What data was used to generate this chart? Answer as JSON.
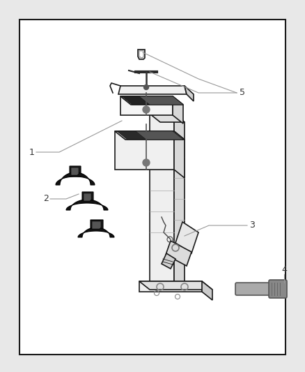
{
  "figure_bg": "#e8e8e8",
  "inner_bg": "#ffffff",
  "border_color": "#1a1a1a",
  "ec": "#1a1a1a",
  "lc": "#000000",
  "gc": "#999999",
  "label_color": "#333333",
  "post_light": "#f0f0f0",
  "post_mid": "#d0d0d0",
  "post_dark": "#b0b0b0",
  "cradle_light": "#f2f2f2",
  "cradle_mid": "#d8d8d8",
  "pad_dark": "#1a1a1a",
  "strap_dark": "#111111"
}
